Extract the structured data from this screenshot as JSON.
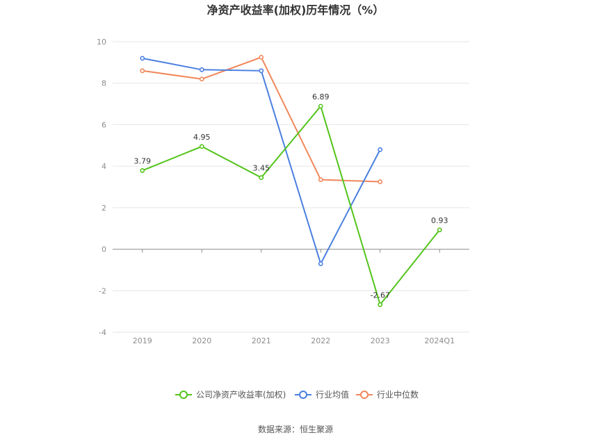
{
  "chart_data": {
    "type": "line",
    "title": "净资产收益率(加权)历年情况（%）",
    "categories": [
      "2019",
      "2020",
      "2021",
      "2022",
      "2023",
      "2024Q1"
    ],
    "ylim": [
      -4,
      10
    ],
    "yticks": [
      -4,
      -2,
      0,
      2,
      4,
      6,
      8,
      10
    ],
    "grid": true,
    "legend_position": "bottom",
    "series": [
      {
        "name": "公司净资产收益率(加权)",
        "color": "#52c41a",
        "values": [
          3.79,
          4.95,
          3.45,
          6.89,
          -2.67,
          0.93
        ],
        "labels": [
          "3.79",
          "4.95",
          "3.45",
          "6.89",
          "-2.67",
          "0.93"
        ]
      },
      {
        "name": "行业均值",
        "color": "#4a7fe0",
        "values": [
          9.2,
          8.65,
          8.6,
          -0.7,
          4.8,
          null
        ]
      },
      {
        "name": "行业中位数",
        "color": "#f0875a",
        "values": [
          8.6,
          8.2,
          9.25,
          3.35,
          3.25,
          null
        ]
      }
    ]
  },
  "source_text": "数据来源：恒生聚源"
}
